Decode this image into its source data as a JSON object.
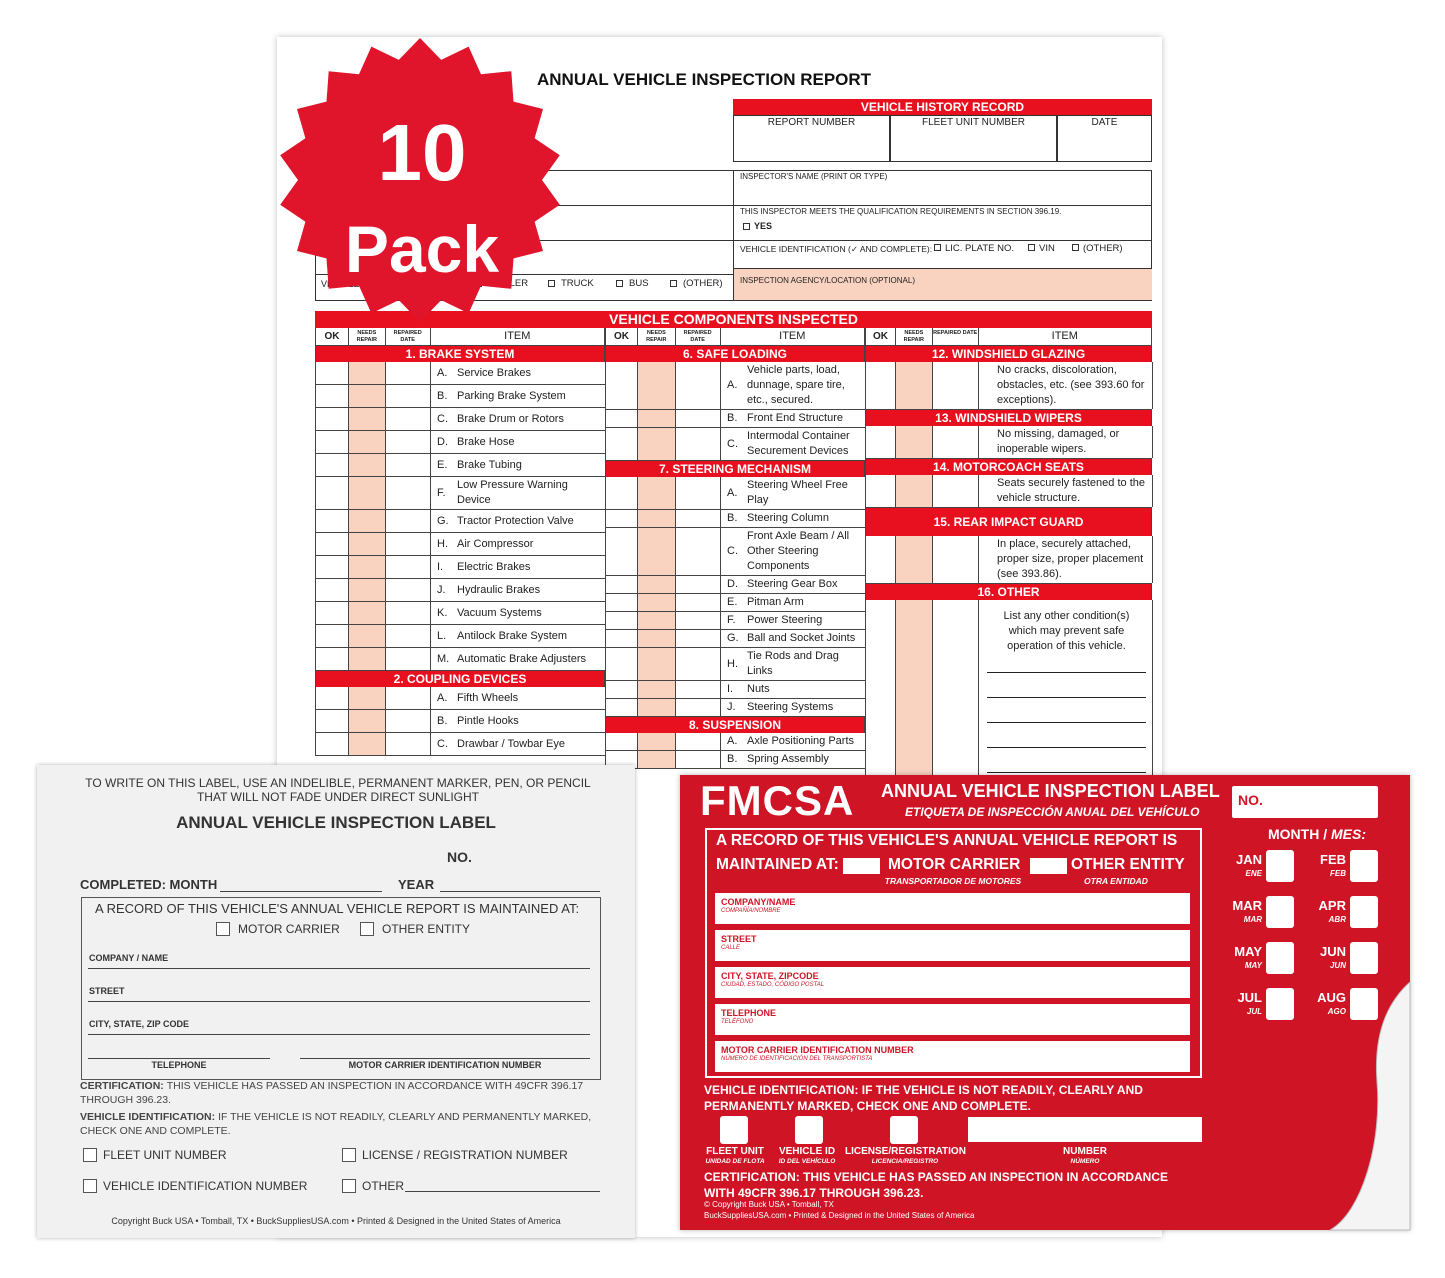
{
  "badge": {
    "number": "10",
    "word": "Pack"
  },
  "report": {
    "title": "ANNUAL VEHICLE INSPECTION REPORT",
    "history": {
      "title": "VEHICLE HISTORY RECORD",
      "columns": [
        "REPORT NUMBER",
        "FLEET UNIT NUMBER",
        "DATE"
      ]
    },
    "inspector_name": "INSPECTOR'S NAME (PRINT OR TYPE)",
    "qualification": "THIS INSPECTOR MEETS THE QUALIFICATION REQUIREMENTS IN SECTION 396.19.",
    "yes": "YES",
    "vehicle_id": {
      "label": "VEHICLE IDENTIFICATION (✓ AND COMPLETE):",
      "options": [
        "LIC. PLATE NO.",
        "VIN",
        "(OTHER)"
      ]
    },
    "vehicle_type": {
      "label": "VEHICLE",
      "options": [
        "TRAILER",
        "TRUCK",
        "BUS",
        "(OTHER)"
      ]
    },
    "agency": "INSPECTION AGENCY/LOCATION (OPTIONAL)",
    "components": {
      "title": "VEHICLE COMPONENTS INSPECTED",
      "headers": [
        "OK",
        "NEEDS REPAIR",
        "REPAIRED DATE",
        "ITEM"
      ],
      "columns": [
        [
          {
            "section": "1. BRAKE SYSTEM"
          },
          {
            "letter": "A.",
            "text": "Service Brakes"
          },
          {
            "letter": "B.",
            "text": "Parking Brake System"
          },
          {
            "letter": "C.",
            "text": "Brake Drum or Rotors"
          },
          {
            "letter": "D.",
            "text": "Brake Hose"
          },
          {
            "letter": "E.",
            "text": "Brake Tubing"
          },
          {
            "letter": "F.",
            "text": "Low Pressure Warning Device"
          },
          {
            "letter": "G.",
            "text": "Tractor Protection Valve"
          },
          {
            "letter": "H.",
            "text": "Air Compressor"
          },
          {
            "letter": "I.",
            "text": "Electric Brakes"
          },
          {
            "letter": "J.",
            "text": "Hydraulic Brakes"
          },
          {
            "letter": "K.",
            "text": "Vacuum Systems"
          },
          {
            "letter": "L.",
            "text": "Antilock Brake System"
          },
          {
            "letter": "M.",
            "text": "Automatic Brake Adjusters"
          },
          {
            "section": "2. COUPLING DEVICES"
          },
          {
            "letter": "A.",
            "text": "Fifth Wheels"
          },
          {
            "letter": "B.",
            "text": "Pintle Hooks"
          },
          {
            "letter": "C.",
            "text": "Drawbar / Towbar Eye"
          }
        ],
        [
          {
            "section": "6. SAFE LOADING"
          },
          {
            "letter": "A.",
            "text": "Vehicle parts, load, dunnage, spare tire, etc., secured."
          },
          {
            "letter": "B.",
            "text": "Front End Structure"
          },
          {
            "letter": "C.",
            "text": "Intermodal Container Securement Devices"
          },
          {
            "section": "7. STEERING MECHANISM"
          },
          {
            "letter": "A.",
            "text": "Steering Wheel Free Play"
          },
          {
            "letter": "B.",
            "text": "Steering Column"
          },
          {
            "letter": "C.",
            "text": "Front Axle Beam / All Other Steering Components"
          },
          {
            "letter": "D.",
            "text": "Steering Gear Box"
          },
          {
            "letter": "E.",
            "text": "Pitman Arm"
          },
          {
            "letter": "F.",
            "text": "Power Steering"
          },
          {
            "letter": "G.",
            "text": "Ball and Socket Joints"
          },
          {
            "letter": "H.",
            "text": "Tie Rods and Drag Links"
          },
          {
            "letter": "I.",
            "text": "Nuts"
          },
          {
            "letter": "J.",
            "text": "Steering Systems"
          },
          {
            "section": "8. SUSPENSION"
          },
          {
            "letter": "A.",
            "text": "Axle Positioning Parts"
          },
          {
            "letter": "B.",
            "text": "Spring Assembly"
          }
        ],
        [
          {
            "section": "12. WINDSHIELD GLAZING"
          },
          {
            "text": "No cracks, discoloration, obstacles, etc. (see 393.60 for exceptions)."
          },
          {
            "section": "13. WINDSHIELD WIPERS"
          },
          {
            "text": "No missing, damaged, or inoperable wipers."
          },
          {
            "section": "14. MOTORCOACH SEATS"
          },
          {
            "text": "Seats securely fastened to the vehicle structure."
          },
          {
            "section": "15. REAR IMPACT GUARD"
          },
          {
            "text": "In place, securely attached, proper size, proper placement (see 393.86)."
          },
          {
            "section": "16. OTHER"
          },
          {
            "text": "List any other condition(s) which may prevent safe operation of this vehicle."
          }
        ]
      ]
    }
  },
  "white_label": {
    "instruction": "TO WRITE ON THIS LABEL, USE AN INDELIBLE, PERMANENT MARKER, PEN, OR PENCIL THAT WILL NOT FADE UNDER DIRECT SUNLIGHT",
    "title": "ANNUAL VEHICLE INSPECTION LABEL",
    "no": "NO.",
    "completed_month": "COMPLETED: MONTH",
    "year": "YEAR",
    "record": "A RECORD OF THIS VEHICLE'S ANNUAL VEHICLE REPORT IS MAINTAINED AT:",
    "options": [
      "MOTOR CARRIER",
      "OTHER ENTITY"
    ],
    "fields": [
      "COMPANY / NAME",
      "STREET",
      "CITY, STATE, ZIP CODE"
    ],
    "bottom_fields": [
      "TELEPHONE",
      "MOTOR CARRIER IDENTIFICATION NUMBER"
    ],
    "certification": {
      "label": "CERTIFICATION:",
      "text": "THIS VEHICLE HAS PASSED AN INSPECTION IN ACCORDANCE WITH 49CFR 396.17 THROUGH 396.23."
    },
    "identification": {
      "label": "VEHICLE IDENTIFICATION:",
      "text": "IF THE VEHICLE IS NOT READILY, CLEARLY AND PERMANENTLY MARKED, CHECK ONE AND COMPLETE."
    },
    "checkboxes": [
      "FLEET UNIT NUMBER",
      "LICENSE / REGISTRATION NUMBER",
      "VEHICLE IDENTIFICATION NUMBER",
      "OTHER"
    ],
    "copyright": "Copyright Buck USA • Tomball, TX • BuckSuppliesUSA.com • Printed & Designed in the United States of America"
  },
  "red_label": {
    "brand": "FMCSA",
    "title": "ANNUAL VEHICLE INSPECTION LABEL",
    "subtitle": "ETIQUETA DE INSPECCIÓN ANUAL DEL VEHÍCULO",
    "no": "NO.",
    "record": "A RECORD OF THIS VEHICLE'S ANNUAL VEHICLE REPORT IS",
    "maintained": "MAINTAINED AT:",
    "options": [
      {
        "name": "MOTOR CARRIER",
        "sub": "TRANSPORTADOR DE MOTORES"
      },
      {
        "name": "OTHER ENTITY",
        "sub": "OTRA ENTIDAD"
      }
    ],
    "fields": [
      {
        "name": "COMPANY/NAME",
        "sub": "COMPAÑÍA/NOMBRE"
      },
      {
        "name": "STREET",
        "sub": "CALLE"
      },
      {
        "name": "CITY, STATE, ZIPCODE",
        "sub": "CIUDAD, ESTADO, CÓDIGO POSTAL"
      },
      {
        "name": "TELEPHONE",
        "sub": "TELÉFONO"
      },
      {
        "name": "MOTOR CARRIER IDENTIFICATION NUMBER",
        "sub": "NÚMERO DE IDENTIFICACIÓN DEL TRANSPORTISTA"
      }
    ],
    "month_title": "MONTH / ",
    "month_title_es": "MES:",
    "months": [
      {
        "name": "JAN",
        "sub": "ENE"
      },
      {
        "name": "FEB",
        "sub": "FEB"
      },
      {
        "name": "MAR",
        "sub": "MAR"
      },
      {
        "name": "APR",
        "sub": "ABR"
      },
      {
        "name": "MAY",
        "sub": "MAY"
      },
      {
        "name": "JUN",
        "sub": "JUN"
      },
      {
        "name": "JUL",
        "sub": "JUL"
      },
      {
        "name": "AUG",
        "sub": "AGO"
      }
    ],
    "identification": "VEHICLE IDENTIFICATION: IF THE VEHICLE IS NOT READILY, CLEARLY AND PERMANENTLY MARKED, CHECK ONE AND COMPLETE.",
    "id_options": [
      {
        "name": "FLEET UNIT",
        "sub": "UNIDAD DE FLOTA"
      },
      {
        "name": "VEHICLE ID",
        "sub": "ID DEL VEHÍCULO"
      },
      {
        "name": "LICENSE/REGISTRATION",
        "sub": "LICENCIA/REGISTRO"
      }
    ],
    "number": {
      "name": "NUMBER",
      "sub": "NÚMERO"
    },
    "certification": "CERTIFICATION: THIS VEHICLE HAS PASSED AN INSPECTION IN ACCORDANCE WITH 49CFR 396.17 THROUGH 396.23.",
    "copyright": [
      "© Copyright Buck USA • Tomball, TX",
      "BuckSuppliesUSA.com • Printed & Designed in the United States of America"
    ]
  }
}
